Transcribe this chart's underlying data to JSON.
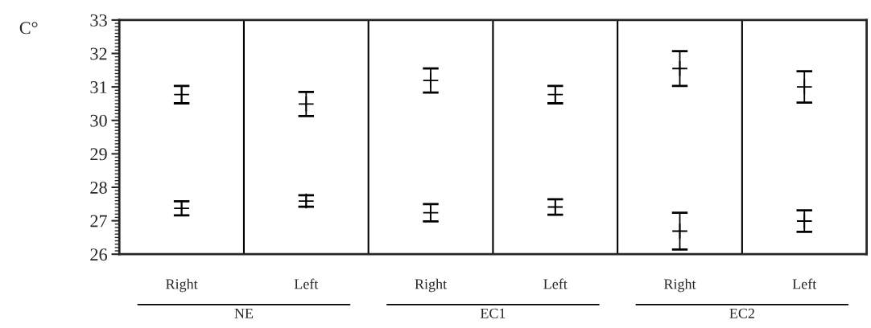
{
  "chart_data": {
    "type": "scatter",
    "ylabel": "C°",
    "categories": [
      "Right",
      "Left",
      "Right",
      "Left",
      "Right",
      "Left"
    ],
    "series": [
      {
        "color": "#000000",
        "values": [
          30.77,
          30.49,
          31.19,
          30.77,
          31.55,
          31.0
        ],
        "errors": [
          0.26,
          0.36,
          0.36,
          0.26,
          0.52,
          0.47
        ]
      },
      {
        "color": "#000000",
        "values": [
          27.37,
          27.59,
          27.24,
          27.41,
          26.69,
          26.99
        ],
        "errors": [
          0.21,
          0.17,
          0.26,
          0.23,
          0.55,
          0.32
        ]
      }
    ],
    "ylim": [
      26,
      33
    ],
    "yticks": [
      26,
      27,
      28,
      29,
      30,
      31,
      32,
      33
    ],
    "grid": "x",
    "marker": "cross",
    "annotations": [
      "NE",
      "EC1",
      "EC2"
    ]
  }
}
